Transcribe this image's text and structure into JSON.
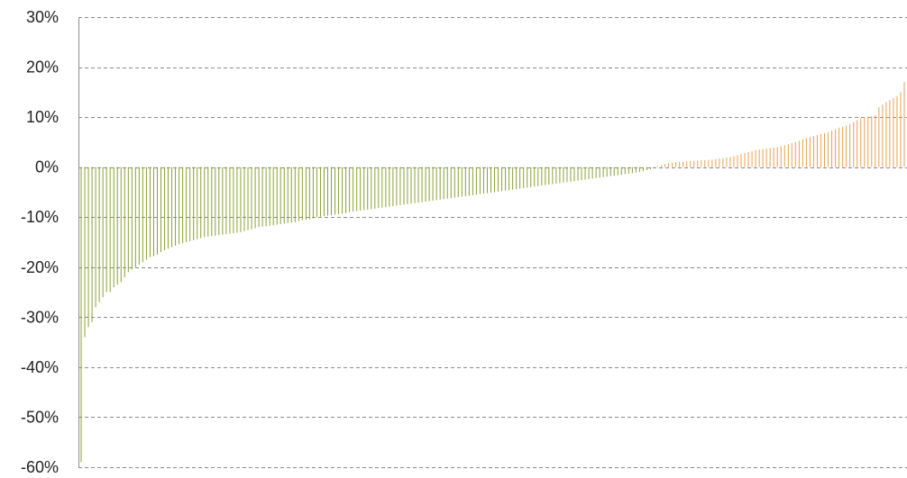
{
  "chart_data": {
    "type": "bar",
    "title": "",
    "xlabel": "",
    "ylabel": "",
    "ylim": [
      -60,
      30
    ],
    "y_ticks": [
      30,
      20,
      10,
      0,
      -10,
      -20,
      -30,
      -40,
      -50,
      -60
    ],
    "y_tick_labels": [
      "30%",
      "20%",
      "10%",
      "0%",
      "-10%",
      "-20%",
      "-30%",
      "-40%",
      "-50%",
      "-60%"
    ],
    "grid": "horizontal dashed",
    "legend": "none",
    "sorted": "ascending",
    "colors": {
      "negative": "#8aa035",
      "positive": "#e8a050",
      "grid": "#8a8a8a",
      "text": "#222222"
    },
    "values": [
      -59,
      -34,
      -32,
      -31,
      -28,
      -27,
      -26,
      -25,
      -25,
      -24,
      -23.5,
      -23,
      -22,
      -21,
      -20.5,
      -20,
      -19.5,
      -19,
      -18.5,
      -18,
      -17.8,
      -17.5,
      -17,
      -16.6,
      -16.3,
      -16,
      -15.7,
      -15.4,
      -15.2,
      -15,
      -14.8,
      -14.6,
      -14.4,
      -14.2,
      -14,
      -13.9,
      -13.8,
      -13.7,
      -13.6,
      -13.5,
      -13.4,
      -13.3,
      -13.2,
      -13.1,
      -13,
      -12.8,
      -12.6,
      -12.4,
      -12.2,
      -12,
      -11.9,
      -11.8,
      -11.7,
      -11.6,
      -11.5,
      -11.4,
      -11.3,
      -11.2,
      -11.1,
      -11,
      -10.8,
      -10.6,
      -10.5,
      -10.4,
      -10.2,
      -10,
      -9.9,
      -9.8,
      -9.7,
      -9.6,
      -9.5,
      -9.4,
      -9.3,
      -9.2,
      -9,
      -8.9,
      -8.8,
      -8.7,
      -8.6,
      -8.5,
      -8.4,
      -8.3,
      -8.2,
      -8.1,
      -8,
      -7.9,
      -7.8,
      -7.7,
      -7.6,
      -7.5,
      -7.4,
      -7.3,
      -7.2,
      -7.1,
      -7,
      -6.9,
      -6.8,
      -6.7,
      -6.6,
      -6.5,
      -6.4,
      -6.3,
      -6.2,
      -6.1,
      -6,
      -5.9,
      -5.8,
      -5.7,
      -5.6,
      -5.5,
      -5.4,
      -5.3,
      -5.2,
      -5.1,
      -5,
      -4.9,
      -4.8,
      -4.7,
      -4.6,
      -4.5,
      -4.4,
      -4.3,
      -4.2,
      -4.1,
      -4,
      -3.9,
      -3.8,
      -3.7,
      -3.6,
      -3.5,
      -3.4,
      -3.3,
      -3.2,
      -3.1,
      -3,
      -2.9,
      -2.8,
      -2.7,
      -2.6,
      -2.5,
      -2.4,
      -2.3,
      -2.2,
      -2.1,
      -2,
      -1.9,
      -1.8,
      -1.7,
      -1.6,
      -1.5,
      -1.4,
      -1.3,
      -1.2,
      -1.1,
      -1,
      -0.8,
      -0.6,
      -0.4,
      -0.2,
      0.2,
      0.4,
      0.6,
      0.8,
      0.9,
      1,
      1.05,
      1.1,
      1.15,
      1.2,
      1.25,
      1.3,
      1.35,
      1.4,
      1.45,
      1.5,
      1.6,
      1.7,
      1.8,
      1.9,
      2,
      2.2,
      2.4,
      2.6,
      2.8,
      3,
      3.2,
      3.4,
      3.5,
      3.6,
      3.7,
      3.8,
      3.9,
      4,
      4.2,
      4.4,
      4.6,
      4.8,
      5,
      5.3,
      5.6,
      5.8,
      6,
      6.2,
      6.4,
      6.6,
      6.8,
      7,
      7.3,
      7.6,
      7.9,
      8.1,
      8.3,
      8.6,
      9,
      9.4,
      9.8,
      10,
      10.1,
      10.2,
      10.4,
      12,
      12.5,
      13,
      13.4,
      13.8,
      14.2,
      15,
      17
    ]
  }
}
